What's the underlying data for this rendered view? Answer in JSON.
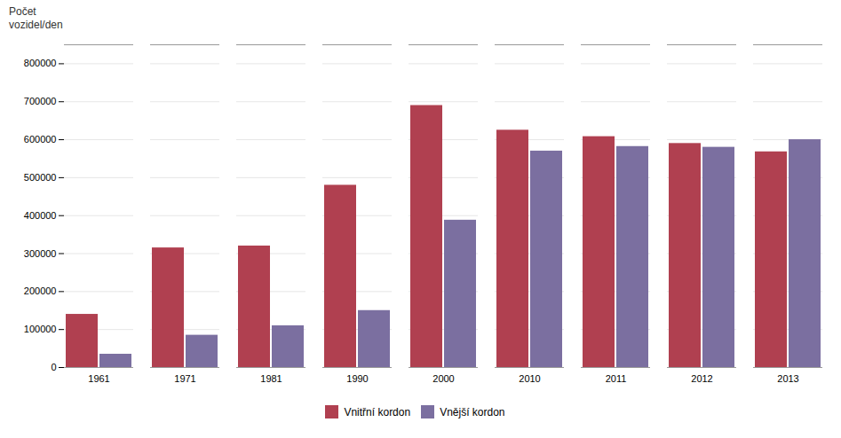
{
  "chart_data": {
    "type": "bar",
    "categories": [
      "1961",
      "1971",
      "1981",
      "1990",
      "2000",
      "2010",
      "2011",
      "2012",
      "2013"
    ],
    "series": [
      {
        "name": "Vnitřní kordon",
        "color": "#B04050",
        "values": [
          140000,
          315000,
          320000,
          480000,
          690000,
          625000,
          608000,
          590000,
          568000
        ]
      },
      {
        "name": "Vnější kordon",
        "color": "#7B6FA0",
        "values": [
          35000,
          85000,
          110000,
          150000,
          388000,
          570000,
          582000,
          580000,
          600000
        ]
      }
    ],
    "ylabel": "Počet\nvozidel/den",
    "ylim": [
      0,
      850000
    ],
    "yticks": [
      0,
      100000,
      200000,
      300000,
      400000,
      500000,
      600000,
      700000,
      800000
    ],
    "grid": true,
    "legend": "bottom"
  }
}
